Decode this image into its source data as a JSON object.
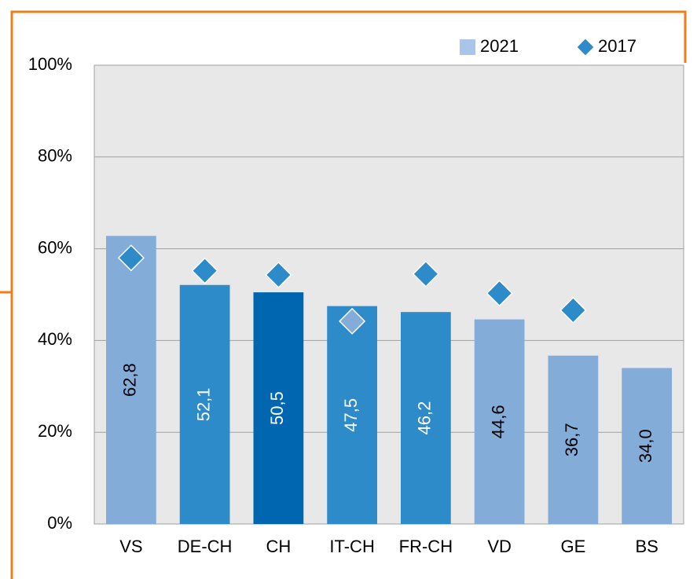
{
  "chart_data": {
    "type": "bar",
    "categories": [
      "VS",
      "DE-CH",
      "CH",
      "IT-CH",
      "FR-CH",
      "VD",
      "GE",
      "BS"
    ],
    "series": [
      {
        "name": "2021",
        "type": "bar",
        "color": "#a9c6e8",
        "colors": [
          "#84acd9",
          "#2e8bc9",
          "#0066b0",
          "#2e8bc9",
          "#2e8bc9",
          "#84acd9",
          "#84acd9",
          "#84acd9"
        ],
        "values": [
          62.8,
          52.1,
          50.5,
          47.5,
          46.2,
          44.6,
          36.7,
          34.0
        ],
        "value_labels": [
          "62,8",
          "52,1",
          "50,5",
          "47,5",
          "46,2",
          "44,6",
          "36,7",
          "34,0"
        ],
        "value_label_colors": [
          "#000000",
          "#ffffff",
          "#ffffff",
          "#ffffff",
          "#ffffff",
          "#000000",
          "#000000",
          "#000000"
        ]
      },
      {
        "name": "2017",
        "type": "scatter",
        "color": "#2e8bc9",
        "marker_colors": [
          "#2e8bc9",
          "#2e8bc9",
          "#2e8bc9",
          "#84acd9",
          "#2e8bc9",
          "#2e8bc9",
          "#2e8bc9",
          null
        ],
        "values": [
          58.0,
          55.2,
          54.3,
          44.2,
          54.5,
          50.3,
          46.6,
          null
        ]
      }
    ],
    "ylim": [
      0,
      100
    ],
    "yticks": [
      {
        "value": 0,
        "label": "0%"
      },
      {
        "value": 20,
        "label": "20%"
      },
      {
        "value": 40,
        "label": "40%"
      },
      {
        "value": 60,
        "label": "60%"
      },
      {
        "value": 80,
        "label": "80%"
      },
      {
        "value": 100,
        "label": "100%"
      }
    ],
    "grid": true,
    "legend": "top-right"
  }
}
